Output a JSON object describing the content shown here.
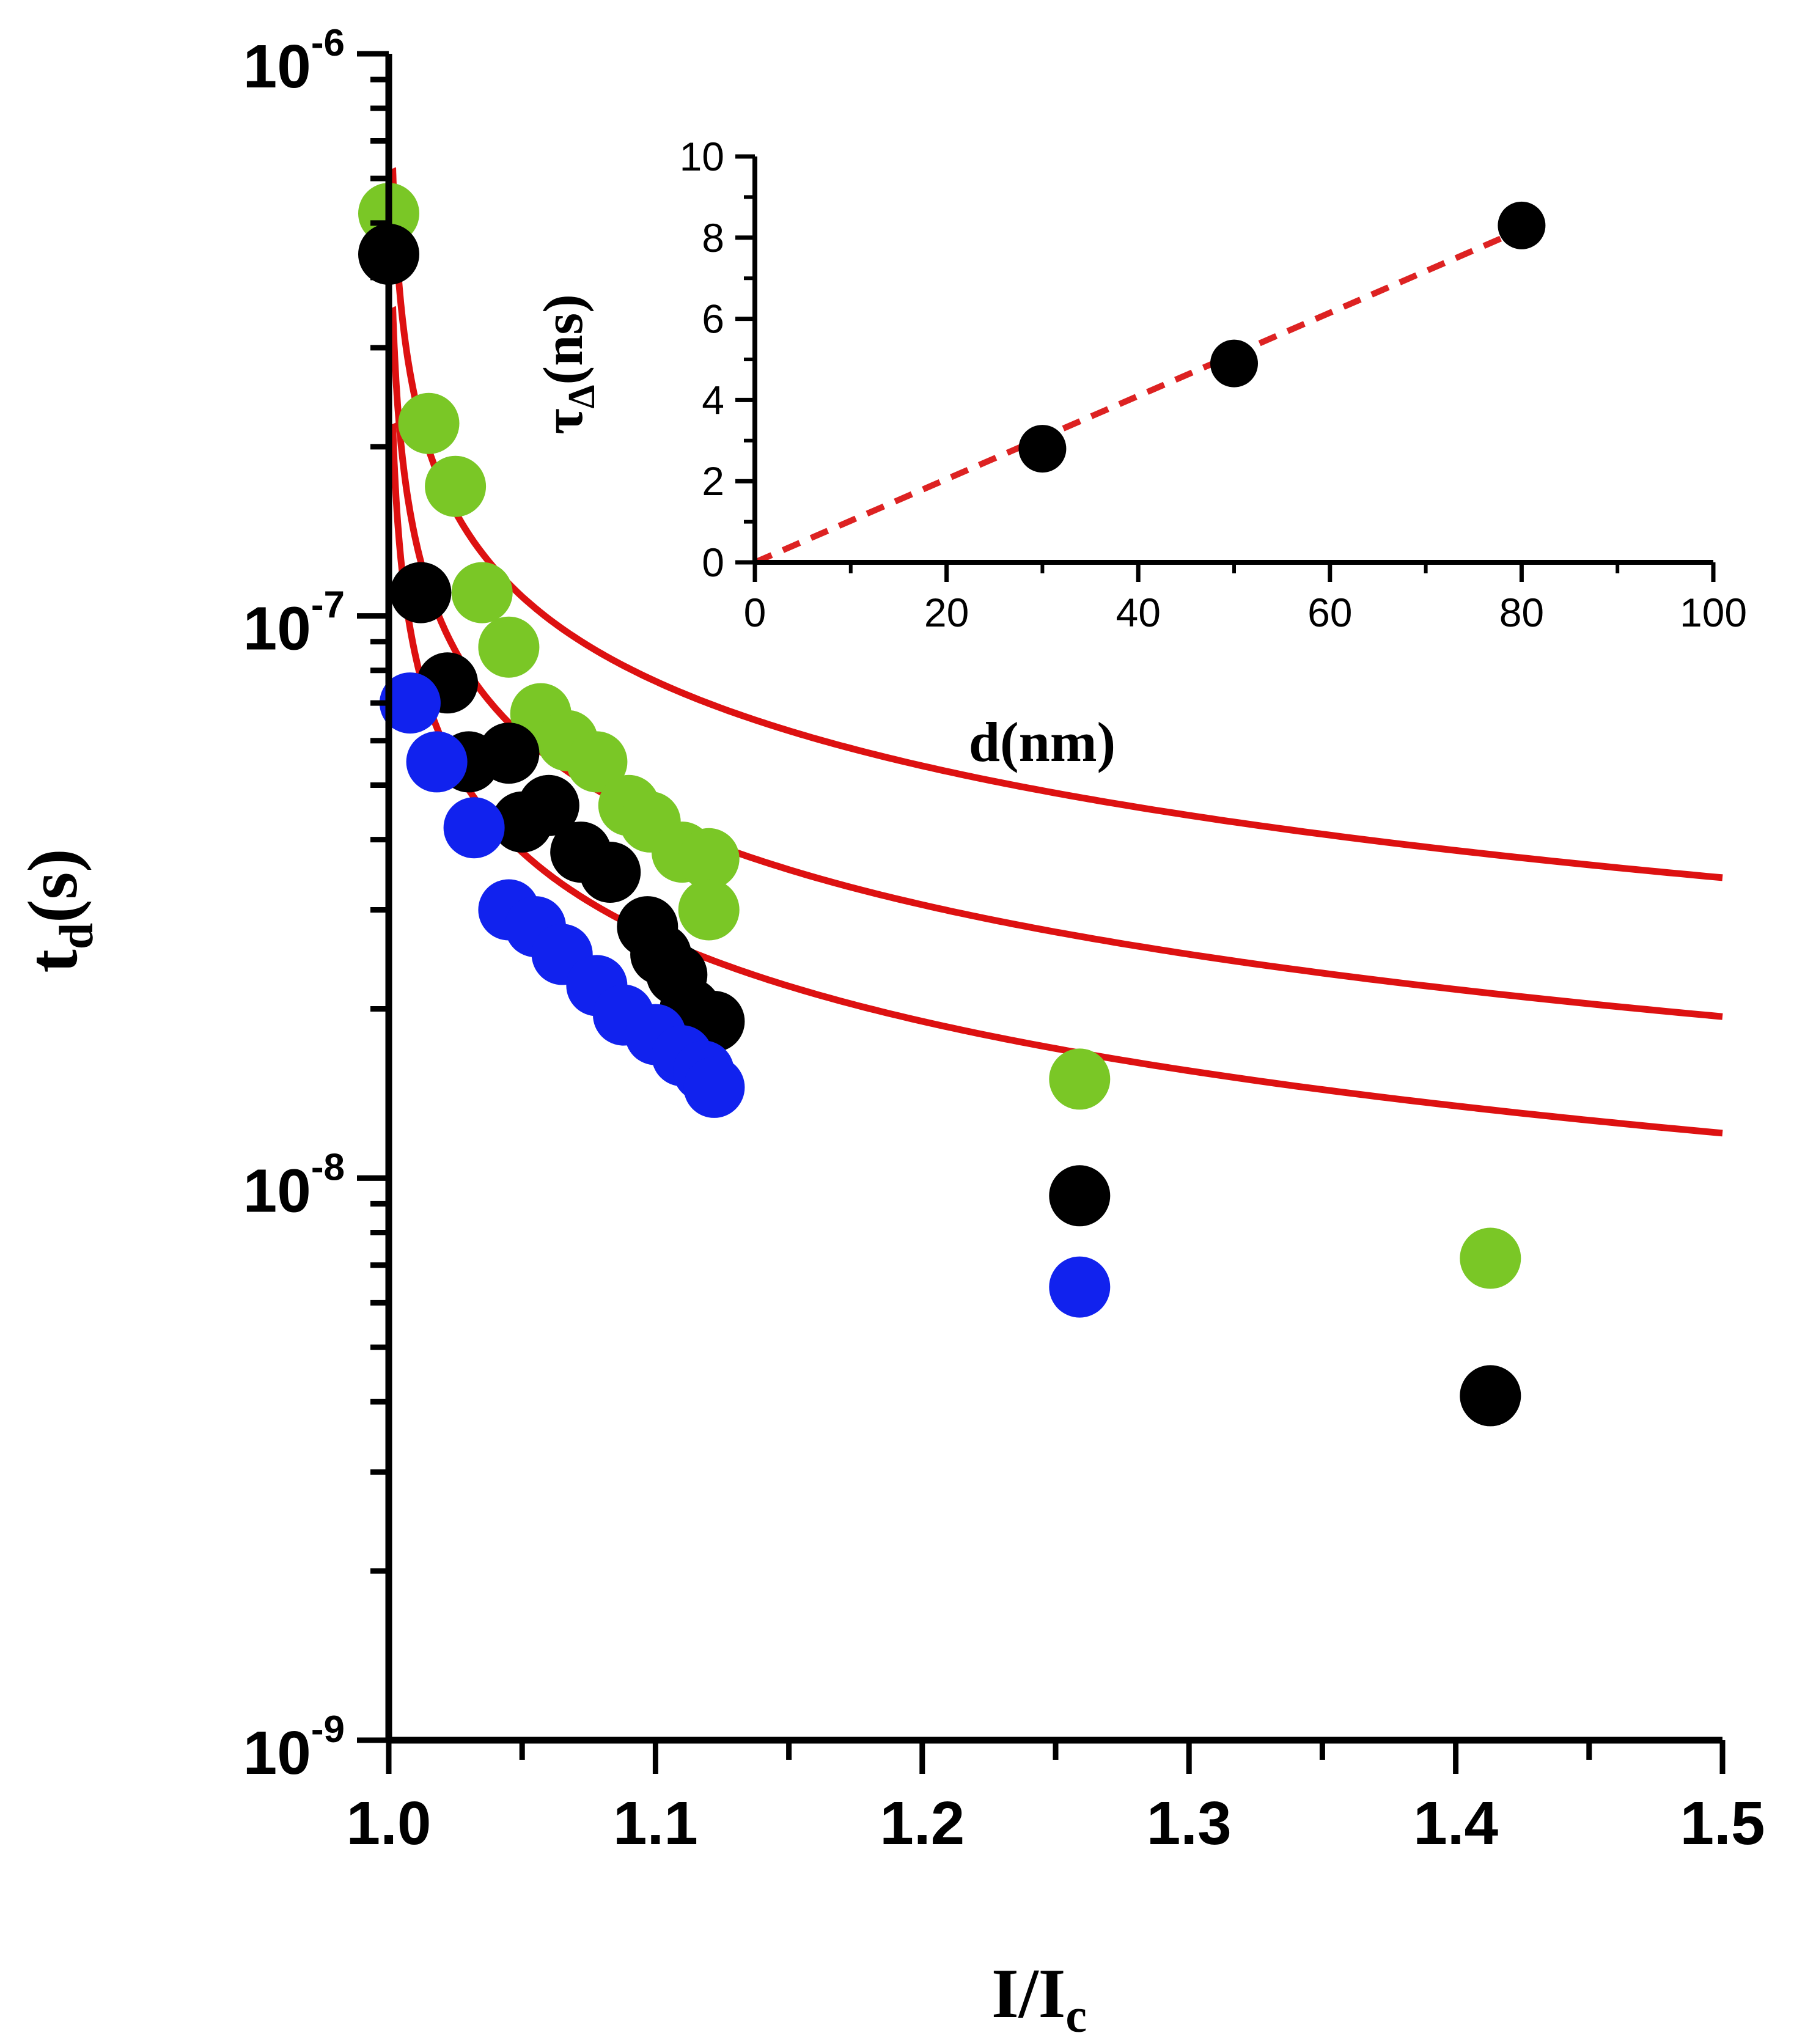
{
  "chart_data": [
    {
      "type": "scatter",
      "title": "",
      "xlabel": {
        "main": "I/I",
        "sub": "c"
      },
      "ylabel": {
        "main": "t",
        "sub": "d",
        "suffix": "(s)"
      },
      "xlim": [
        1.0,
        1.5
      ],
      "ylim": [
        1e-09,
        1e-06
      ],
      "yscale": "log",
      "x_ticks": [
        "1.0",
        "1.1",
        "1.2",
        "1.3",
        "1.4",
        "1.5"
      ],
      "y_ticks": [
        {
          "base": "10",
          "exp": "-9",
          "value": 1e-09
        },
        {
          "base": "10",
          "exp": "-8",
          "value": 1e-08
        },
        {
          "base": "10",
          "exp": "-7",
          "value": 1e-07
        },
        {
          "base": "10",
          "exp": "-6",
          "value": 1e-06
        }
      ],
      "series": [
        {
          "name": "green",
          "color": "#7ac726",
          "points": [
            [
              1.0,
              5.2e-07
            ],
            [
              1.015,
              2.2e-07
            ],
            [
              1.025,
              1.7e-07
            ],
            [
              1.035,
              1.1e-07
            ],
            [
              1.045,
              8.8e-08
            ],
            [
              1.057,
              6.7e-08
            ],
            [
              1.067,
              6e-08
            ],
            [
              1.078,
              5.5e-08
            ],
            [
              1.09,
              4.6e-08
            ],
            [
              1.098,
              4.3e-08
            ],
            [
              1.11,
              3.8e-08
            ],
            [
              1.12,
              3.7e-08
            ],
            [
              1.12,
              3e-08
            ],
            [
              1.259,
              1.5e-08
            ],
            [
              1.413,
              7.2e-09
            ]
          ]
        },
        {
          "name": "black",
          "color": "#000000",
          "points": [
            [
              1.0,
              4.4e-07
            ],
            [
              1.012,
              1.1e-07
            ],
            [
              1.022,
              7.6e-08
            ],
            [
              1.03,
              5.5e-08
            ],
            [
              1.045,
              5.7e-08
            ],
            [
              1.05,
              4.3e-08
            ],
            [
              1.06,
              4.6e-08
            ],
            [
              1.072,
              3.8e-08
            ],
            [
              1.083,
              3.5e-08
            ],
            [
              1.097,
              2.8e-08
            ],
            [
              1.102,
              2.5e-08
            ],
            [
              1.108,
              2.3e-08
            ],
            [
              1.113,
              2e-08
            ],
            [
              1.122,
              1.9e-08
            ],
            [
              1.259,
              9.3e-09
            ],
            [
              1.413,
              4.1e-09
            ]
          ]
        },
        {
          "name": "blue",
          "color": "#1122ee",
          "points": [
            [
              1.008,
              7e-08
            ],
            [
              1.018,
              5.5e-08
            ],
            [
              1.032,
              4.2e-08
            ],
            [
              1.045,
              3e-08
            ],
            [
              1.055,
              2.8e-08
            ],
            [
              1.065,
              2.5e-08
            ],
            [
              1.078,
              2.2e-08
            ],
            [
              1.088,
              1.95e-08
            ],
            [
              1.1,
              1.8e-08
            ],
            [
              1.11,
              1.65e-08
            ],
            [
              1.118,
              1.55e-08
            ],
            [
              1.122,
              1.45e-08
            ],
            [
              1.259,
              6.4e-09
            ]
          ]
        }
      ],
      "fits": [
        {
          "name": "fit-green",
          "color": "#dd1111",
          "model": "tau/(x-1)^0.5",
          "tau_s": 2.42e-08,
          "x_start": 1.0015
        },
        {
          "name": "fit-black",
          "color": "#dd1111",
          "model": "tau/(x-1)^0.5",
          "tau_s": 1.37e-08,
          "x_start": 1.0015
        },
        {
          "name": "fit-blue",
          "color": "#dd1111",
          "model": "tau/(x-1)^0.5",
          "tau_s": 8.5e-09,
          "x_start": 1.0015
        }
      ]
    },
    {
      "type": "scatter",
      "title": "",
      "xlabel": {
        "main": "d(nm)"
      },
      "ylabel": {
        "main": "τ",
        "sub": "Δ",
        "suffix": "(ns)"
      },
      "xlim": [
        0,
        100
      ],
      "ylim": [
        0,
        10
      ],
      "x_ticks": [
        "0",
        "20",
        "40",
        "60",
        "80",
        "100"
      ],
      "y_ticks": [
        "0",
        "2",
        "4",
        "6",
        "8",
        "10"
      ],
      "series": [
        {
          "name": "data",
          "color": "#000000",
          "points": [
            [
              30,
              2.8
            ],
            [
              50,
              4.9
            ],
            [
              80,
              8.3
            ]
          ]
        }
      ],
      "fit": {
        "name": "linear-fit",
        "color": "#dd2222",
        "style": "dashed",
        "x": [
          0,
          80
        ],
        "y": [
          0,
          8.2
        ]
      }
    }
  ]
}
